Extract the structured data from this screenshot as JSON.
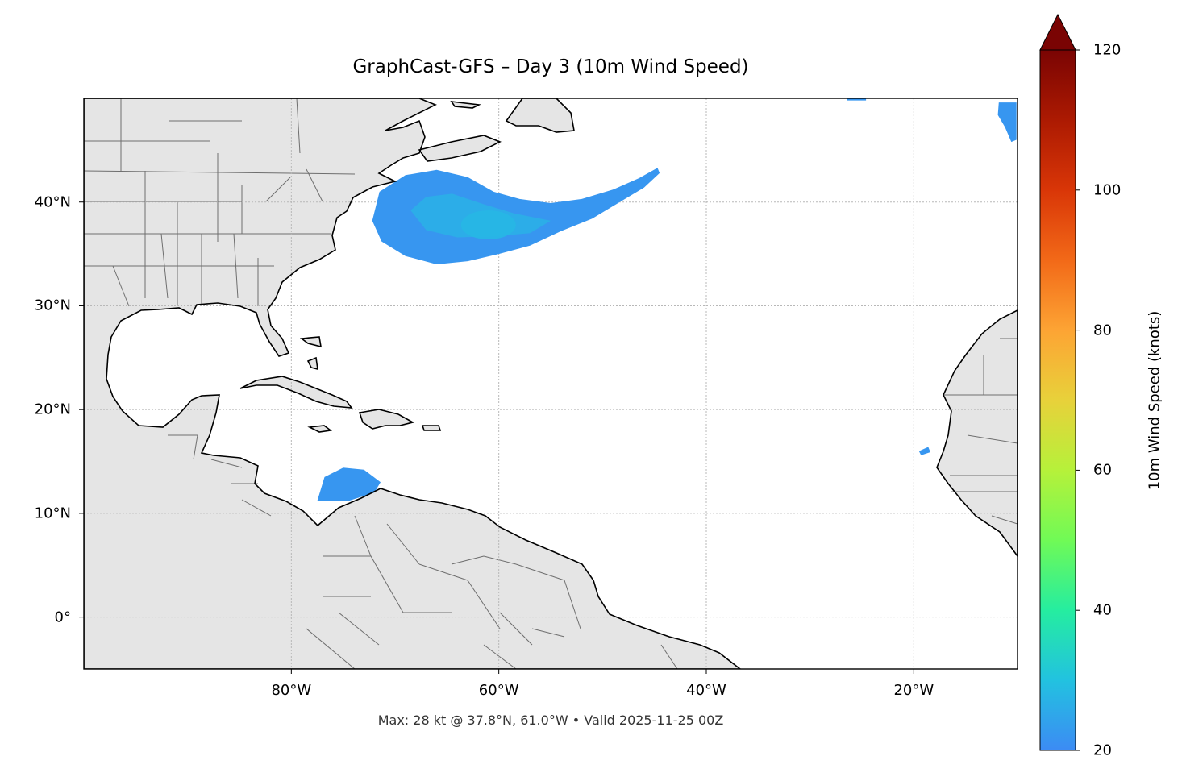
{
  "title": "GraphCast-GFS – Day 3 (10m Wind Speed)",
  "footnote": "Max: 28 kt @ 37.8°N, 61.0°W • Valid 2025-11-25 00Z",
  "map": {
    "extent": {
      "lon_min": -100,
      "lon_max": -10,
      "lat_min": -5,
      "lat_max": 50
    },
    "lat_ticks": [
      {
        "value": 0,
        "label": "0°"
      },
      {
        "value": 10,
        "label": "10°N"
      },
      {
        "value": 20,
        "label": "20°N"
      },
      {
        "value": 30,
        "label": "30°N"
      },
      {
        "value": 40,
        "label": "40°N"
      }
    ],
    "lon_ticks": [
      {
        "value": -80,
        "label": "80°W"
      },
      {
        "value": -60,
        "label": "60°W"
      },
      {
        "value": -40,
        "label": "40°W"
      },
      {
        "value": -20,
        "label": "20°W"
      }
    ],
    "gridlines": true,
    "land_color": "#e5e5e5",
    "coast_color": "#000000",
    "border_color": "#6e6e6e",
    "grid_color": "#b8b8b8"
  },
  "wind_regions": [
    {
      "name": "north-atlantic-wind-swath",
      "max_kt": 28,
      "max_lat": 37.8,
      "max_lon": -61.0,
      "outline": [
        [
          -72.2,
          38.2
        ],
        [
          -71.5,
          41.0
        ],
        [
          -69.0,
          42.6
        ],
        [
          -66.0,
          43.1
        ],
        [
          -63.0,
          42.4
        ],
        [
          -60.5,
          41.0
        ],
        [
          -58.0,
          40.3
        ],
        [
          -55.0,
          39.9
        ],
        [
          -52.0,
          40.3
        ],
        [
          -49.0,
          41.2
        ],
        [
          -46.5,
          42.3
        ],
        [
          -44.7,
          43.3
        ],
        [
          -44.5,
          42.8
        ],
        [
          -46.0,
          41.4
        ],
        [
          -48.5,
          39.9
        ],
        [
          -51.0,
          38.4
        ],
        [
          -54.0,
          37.2
        ],
        [
          -57.0,
          35.8
        ],
        [
          -60.0,
          35.0
        ],
        [
          -63.0,
          34.3
        ],
        [
          -66.0,
          34.0
        ],
        [
          -69.0,
          34.8
        ],
        [
          -71.3,
          36.2
        ]
      ],
      "core": [
        [
          -68.5,
          39.2
        ],
        [
          -67.0,
          40.5
        ],
        [
          -64.5,
          40.8
        ],
        [
          -61.5,
          39.8
        ],
        [
          -58.5,
          38.9
        ],
        [
          -55.0,
          38.2
        ],
        [
          -57.0,
          37.0
        ],
        [
          -60.5,
          36.7
        ],
        [
          -64.0,
          36.6
        ],
        [
          -67.0,
          37.3
        ]
      ]
    },
    {
      "name": "caribbean-wind-patch",
      "max_kt": 22,
      "outline": [
        [
          -77.5,
          11.2
        ],
        [
          -76.8,
          13.5
        ],
        [
          -75.0,
          14.4
        ],
        [
          -73.0,
          14.2
        ],
        [
          -71.4,
          13.0
        ],
        [
          -72.0,
          12.0
        ],
        [
          -74.5,
          11.2
        ]
      ]
    },
    {
      "name": "cape-verde-wind-patch",
      "max_kt": 21,
      "outline": [
        [
          -19.5,
          16.0
        ],
        [
          -18.6,
          16.4
        ],
        [
          -18.4,
          15.9
        ],
        [
          -19.3,
          15.6
        ]
      ]
    },
    {
      "name": "northeast-edge-wind-patch",
      "max_kt": 22,
      "outline": [
        [
          -11.8,
          49.6
        ],
        [
          -10.1,
          49.6
        ],
        [
          -10.1,
          46.0
        ],
        [
          -10.6,
          45.8
        ],
        [
          -11.2,
          47.2
        ],
        [
          -11.9,
          48.4
        ]
      ]
    },
    {
      "name": "north-edge-wind-patch",
      "max_kt": 20,
      "outline": [
        [
          -26.4,
          50.0
        ],
        [
          -24.6,
          50.0
        ],
        [
          -24.6,
          49.8
        ],
        [
          -26.4,
          49.8
        ]
      ]
    }
  ],
  "colorbar": {
    "label": "10m Wind Speed (knots)",
    "min": 20,
    "max": 120,
    "extend": "max",
    "ticks": [
      {
        "value": 20,
        "label": "20"
      },
      {
        "value": 40,
        "label": "40"
      },
      {
        "value": 60,
        "label": "60"
      },
      {
        "value": 80,
        "label": "80"
      },
      {
        "value": 100,
        "label": "100"
      },
      {
        "value": 120,
        "label": "120"
      }
    ],
    "stops": [
      {
        "value": 20,
        "color": "#3c8bf4"
      },
      {
        "value": 30,
        "color": "#22c2e0"
      },
      {
        "value": 40,
        "color": "#25eda0"
      },
      {
        "value": 50,
        "color": "#70fa56"
      },
      {
        "value": 60,
        "color": "#b6f13a"
      },
      {
        "value": 70,
        "color": "#e8d13a"
      },
      {
        "value": 80,
        "color": "#fda434"
      },
      {
        "value": 90,
        "color": "#f26918"
      },
      {
        "value": 100,
        "color": "#d93607"
      },
      {
        "value": 110,
        "color": "#ac1a02"
      },
      {
        "value": 120,
        "color": "#7a0403"
      }
    ]
  }
}
